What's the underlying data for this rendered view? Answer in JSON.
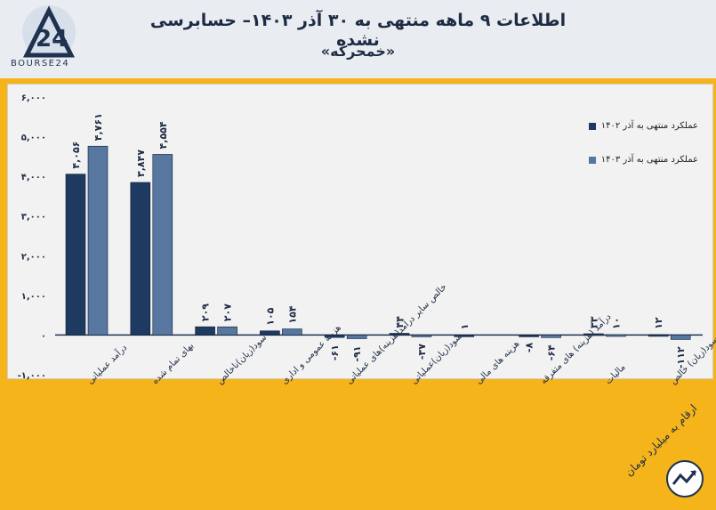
{
  "header": {
    "title": "اطلاعات ۹ ماهه منتهی به ۳۰ آذر ۱۴۰۳– حسابرسی نشده",
    "subtitle": "«خمحرکه»",
    "logo_text": "BOURSE24"
  },
  "footer": {
    "units_note": "ارقام به میلیارد تومان"
  },
  "colors": {
    "background": "#f4b41a",
    "panel": "#f2f2f2",
    "series_1402": "#1f3a60",
    "series_1403": "#5877a0"
  },
  "chart_data": {
    "type": "bar",
    "ylim": [
      -1000,
      6000
    ],
    "yticks": [
      "-۱,۰۰۰",
      "۰",
      "۱,۰۰۰",
      "۲,۰۰۰",
      "۳,۰۰۰",
      "۴,۰۰۰",
      "۵,۰۰۰",
      "۶,۰۰۰"
    ],
    "ytick_values": [
      -1000,
      0,
      1000,
      2000,
      3000,
      4000,
      5000,
      6000
    ],
    "grid": false,
    "legend_position": "top-right",
    "categories": [
      "درآمد عملیاتی",
      "بهای تمام شده",
      "سود(زیان)ناخالص",
      "هزینه عمومی و اداری",
      "خالص سایر درآمد(هزینه)های عملیاتی",
      "سود(زیان)عملیاتی",
      "هزینه های مالی",
      "درآمد (هزینه) های متفرقه",
      "مالیات",
      "سود(زیان) خالص"
    ],
    "series": [
      {
        "name": "عملکرد منتهی به آذر ۱۴۰۲",
        "values": [
          4056,
          3847,
          209,
          105,
          -61,
          44,
          1,
          -8,
          33,
          12
        ],
        "labels": [
          "۴,۰۵۶",
          "۳,۸۴۷",
          "۲۰۹",
          "۱۰۵",
          "-۶۱",
          "۴۴",
          "۱",
          "-۸",
          "۳۳",
          "۱۲"
        ]
      },
      {
        "name": "عملکرد منتهی به آذر ۱۴۰۳",
        "values": [
          4761,
          4554,
          207,
          154,
          -91,
          -37,
          null,
          -64,
          10,
          -112
        ],
        "labels": [
          "۴,۷۶۱",
          "۴,۵۵۴",
          "۲۰۷",
          "۱۵۴",
          "-۹۱",
          "-۳۷",
          "",
          "-۶۴",
          "۱۰",
          "-۱۱۲"
        ]
      }
    ]
  }
}
